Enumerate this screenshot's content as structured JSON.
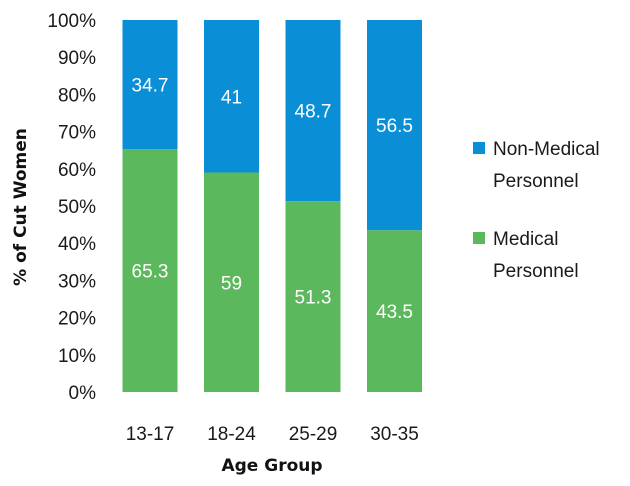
{
  "chart_data": {
    "type": "bar",
    "stacked": true,
    "percent_stacked": true,
    "categories": [
      "13-17",
      "18-24",
      "25-29",
      "30-35"
    ],
    "series": [
      {
        "name": "Medical Personnel",
        "values": [
          65.3,
          59,
          51.3,
          43.5
        ],
        "color": "#5cb85c"
      },
      {
        "name": "Non-Medical Personnel",
        "values": [
          34.7,
          41,
          48.7,
          56.5
        ],
        "color": "#0a8fd6"
      }
    ],
    "data_labels": {
      "Medical Personnel": [
        "65.3",
        "59",
        "51.3",
        "43.5"
      ],
      "Non-Medical Personnel": [
        "34.7",
        "41",
        "48.7",
        "56.5"
      ]
    },
    "xlabel": "Age Group",
    "ylabel": "% of Cut Women",
    "ylim": [
      0,
      100
    ],
    "yticks": [
      "0%",
      "10%",
      "20%",
      "30%",
      "40%",
      "50%",
      "60%",
      "70%",
      "80%",
      "90%",
      "100%"
    ],
    "grid": false,
    "legend": {
      "position": "right",
      "entries": [
        {
          "series": "Non-Medical Personnel",
          "lines": [
            "Non-Medical",
            "Personnel"
          ],
          "color": "#0a8fd6"
        },
        {
          "series": "Medical Personnel",
          "lines": [
            "Medical",
            "Personnel"
          ],
          "color": "#5cb85c"
        }
      ]
    }
  }
}
